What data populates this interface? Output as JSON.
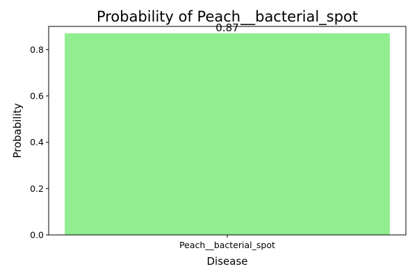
{
  "chart_data": {
    "type": "bar",
    "title": "Probability of Peach__bacterial_spot",
    "xlabel": "Disease",
    "ylabel": "Probability",
    "categories": [
      "Peach__bacterial_spot"
    ],
    "values": [
      0.87
    ],
    "data_labels": [
      "0.87"
    ],
    "ylim": [
      0,
      0.9
    ],
    "yticks": [
      0.0,
      0.2,
      0.4,
      0.6,
      0.8
    ],
    "ytick_labels": [
      "0.0",
      "0.2",
      "0.4",
      "0.6",
      "0.8"
    ],
    "bar_color": "#90ee90",
    "grid": false,
    "legend": "none"
  }
}
